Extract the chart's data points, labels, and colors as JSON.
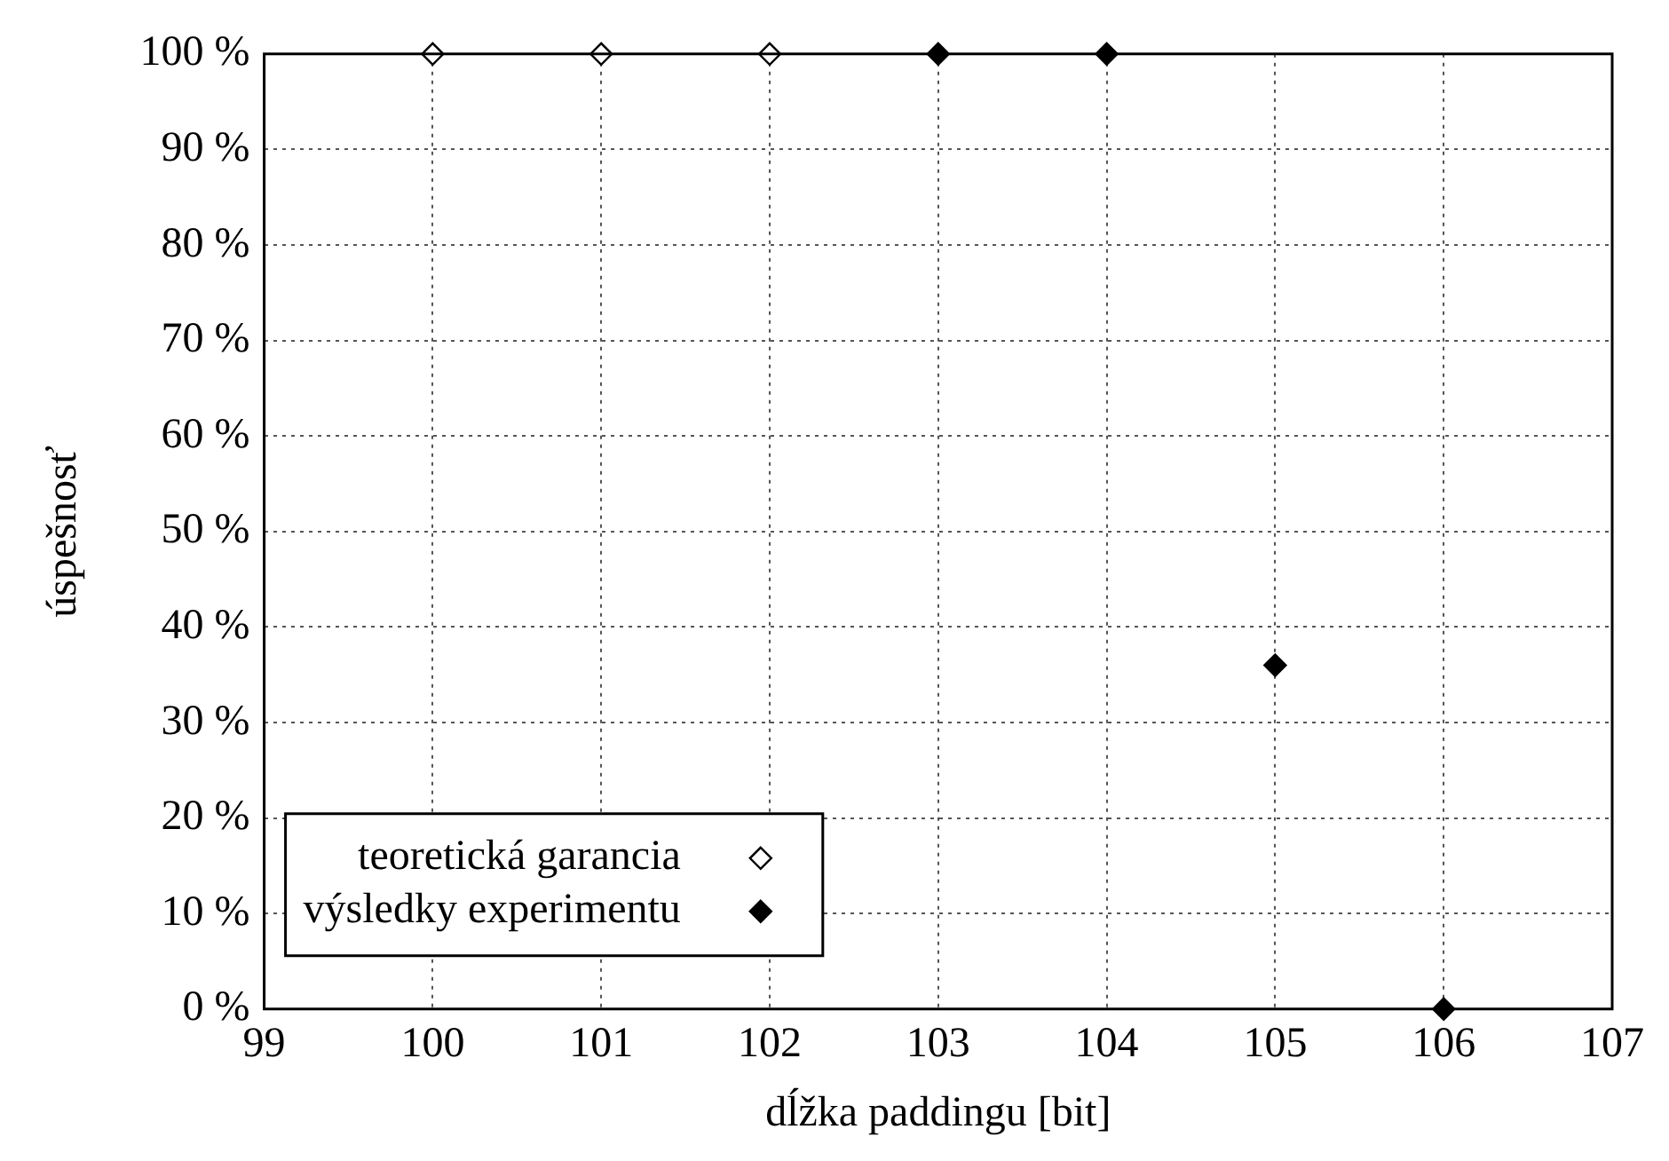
{
  "chart_data": {
    "type": "scatter",
    "xlabel": "dĺžka paddingu [bit]",
    "ylabel": "úspešnosť",
    "xlim": [
      99,
      107
    ],
    "xticks": [
      99,
      100,
      101,
      102,
      103,
      104,
      105,
      106,
      107
    ],
    "ylim": [
      0,
      100
    ],
    "yticks": [
      {
        "value": 0,
        "label": "0 %"
      },
      {
        "value": 10,
        "label": "10 %"
      },
      {
        "value": 20,
        "label": "20 %"
      },
      {
        "value": 30,
        "label": "30 %"
      },
      {
        "value": 40,
        "label": "40 %"
      },
      {
        "value": 50,
        "label": "50 %"
      },
      {
        "value": 60,
        "label": "60 %"
      },
      {
        "value": 70,
        "label": "70 %"
      },
      {
        "value": 80,
        "label": "80 %"
      },
      {
        "value": 90,
        "label": "90 %"
      },
      {
        "value": 100,
        "label": "100 %"
      }
    ],
    "grid": true,
    "legend": "bottom left",
    "marker": "diamond",
    "series": [
      {
        "name": "teoretická garancia",
        "color": "#000000",
        "x": [
          100,
          101,
          102
        ],
        "values": [
          100,
          100,
          100
        ]
      },
      {
        "name": "výsledky experimentu",
        "color": "#000000",
        "x": [
          103,
          104,
          105,
          106
        ],
        "values": [
          100,
          100,
          36,
          0
        ]
      }
    ]
  }
}
